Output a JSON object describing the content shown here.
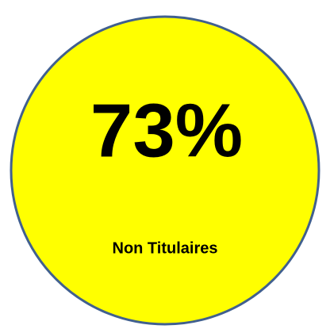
{
  "badge": {
    "value_text": "73%",
    "label": "Non Titulaires"
  }
}
